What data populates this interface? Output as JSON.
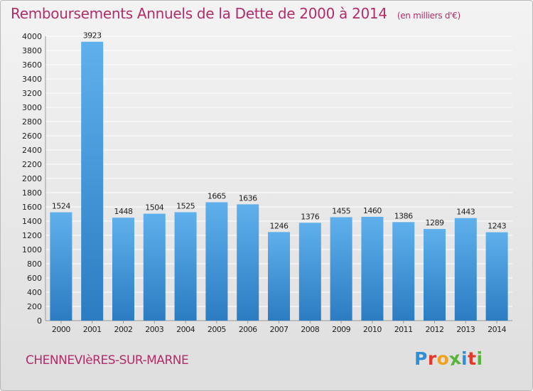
{
  "title": "Remboursements Annuels de la Dette de 2000 à 2014",
  "subtitle": "(en milliers d'€)",
  "city": "CHENNEVIèRES-SUR-MARNE",
  "logo": {
    "letters": [
      "P",
      "r",
      "o",
      "x",
      "i",
      "t",
      "i"
    ],
    "colors": [
      "#2e8fd6",
      "#e5372a",
      "#f0a21e",
      "#59b43b",
      "#2e8fd6",
      "#e5372a",
      "#59b43b"
    ]
  },
  "colors": {
    "title": "#b02d6a",
    "bar_top": "#5fb0ec",
    "bar_bottom": "#2b7cc2",
    "grid": "#ffffff",
    "axis_text": "#222222"
  },
  "chart_data": {
    "type": "bar",
    "title": "Remboursements Annuels de la Dette de 2000 à 2014",
    "subtitle": "(en milliers d'€)",
    "xlabel": "",
    "ylabel": "",
    "ylim": [
      0,
      4000
    ],
    "yticks": [
      0,
      200,
      400,
      600,
      800,
      1000,
      1200,
      1400,
      1600,
      1800,
      2000,
      2200,
      2400,
      2600,
      2800,
      3000,
      3200,
      3400,
      3600,
      3800,
      4000
    ],
    "grid": true,
    "categories": [
      "2000",
      "2001",
      "2002",
      "2003",
      "2004",
      "2005",
      "2006",
      "2007",
      "2008",
      "2009",
      "2010",
      "2011",
      "2012",
      "2013",
      "2014"
    ],
    "values": [
      1524,
      3923,
      1448,
      1504,
      1525,
      1665,
      1636,
      1246,
      1376,
      1455,
      1460,
      1386,
      1289,
      1443,
      1243
    ]
  }
}
